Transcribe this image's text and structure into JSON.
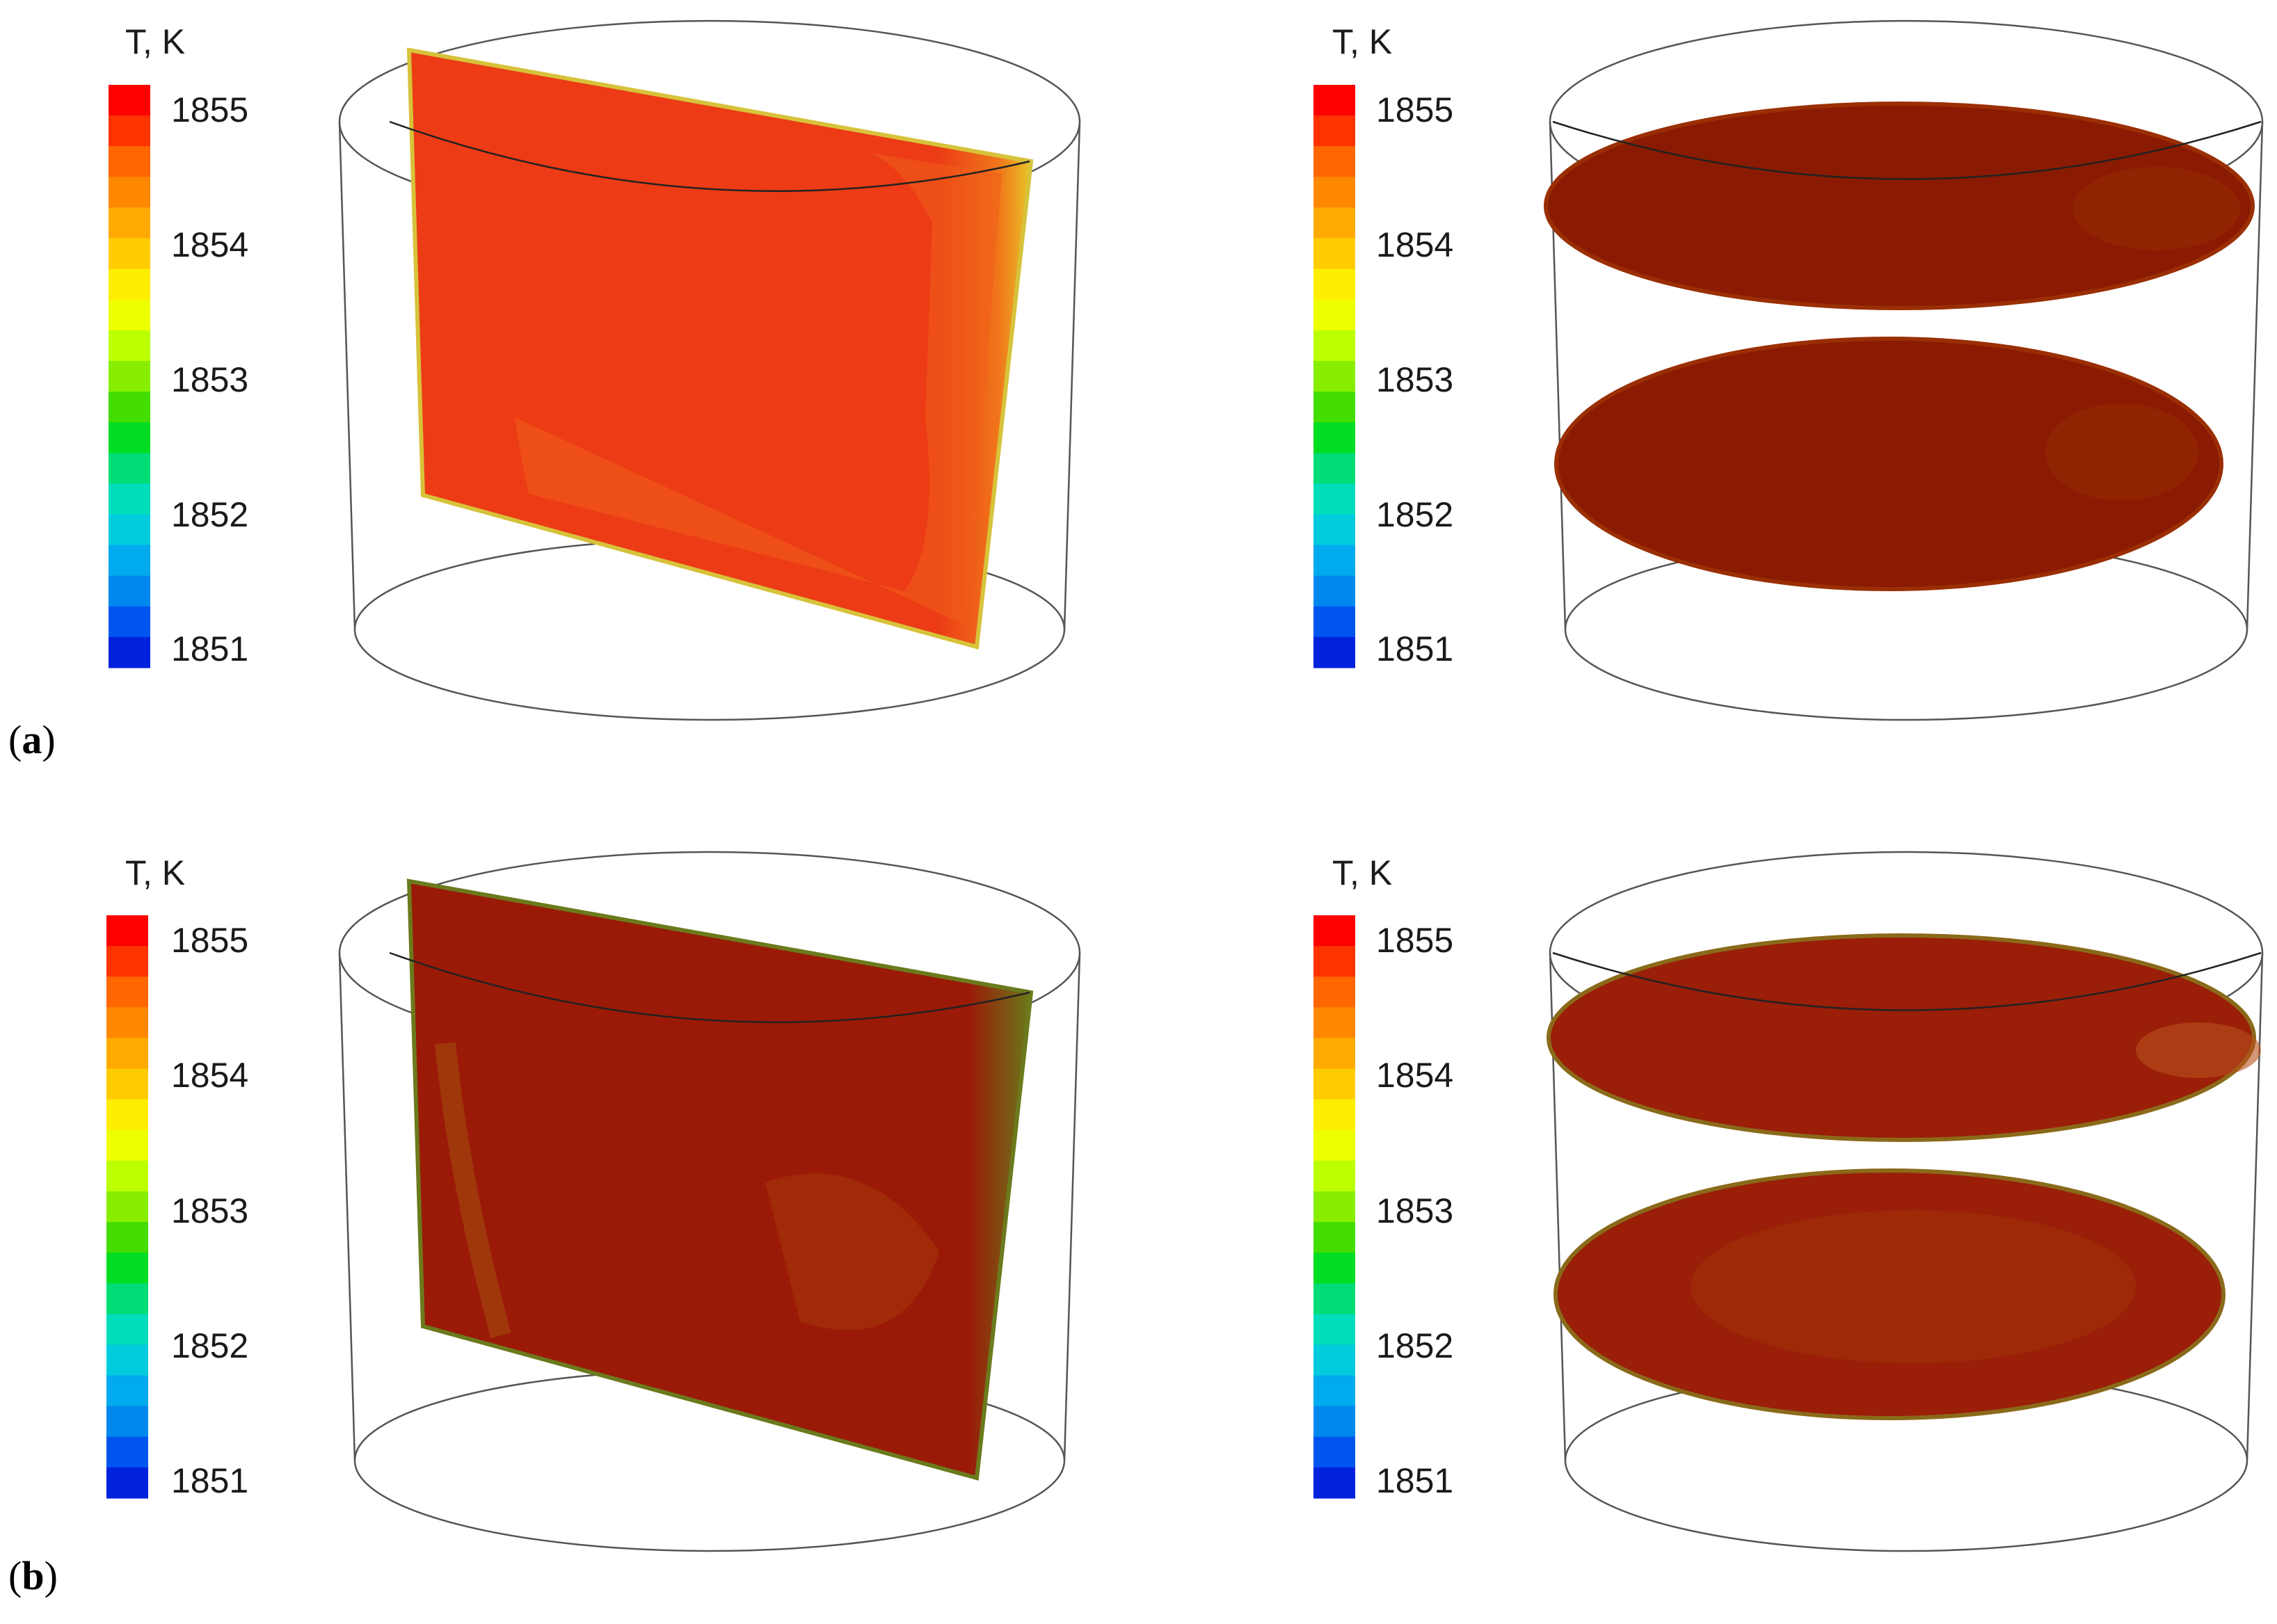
{
  "colorbar": {
    "title": "T, K",
    "ticks": [
      "1855",
      "1854",
      "1853",
      "1852",
      "1851"
    ],
    "min": 1851,
    "max": 1855,
    "colors": [
      "#ff0000",
      "#ff3300",
      "#ff6600",
      "#ff8800",
      "#ffaa00",
      "#ffcc00",
      "#ffee00",
      "#eeff00",
      "#bbff00",
      "#88ee00",
      "#44dd00",
      "#00dd22",
      "#00dd77",
      "#00ddbb",
      "#00ccdd",
      "#00aaee",
      "#0088ee",
      "#0055ee",
      "#0022dd"
    ]
  },
  "panels": [
    {
      "label_open": "(",
      "label_letter": "a",
      "label_close": ")",
      "vertical_fill": "#ec3b15",
      "vertical_edge": "#f06019",
      "horizontal_fill": "#8a1b02",
      "horizontal_edge": "#9a2f04"
    },
    {
      "label_open": "(",
      "label_letter": "b",
      "label_close": ")",
      "vertical_fill": "#9a1a07",
      "vertical_edge": "#a83a0c",
      "horizontal_fill": "#9a1e08",
      "horizontal_edge": "#a3400c"
    }
  ]
}
